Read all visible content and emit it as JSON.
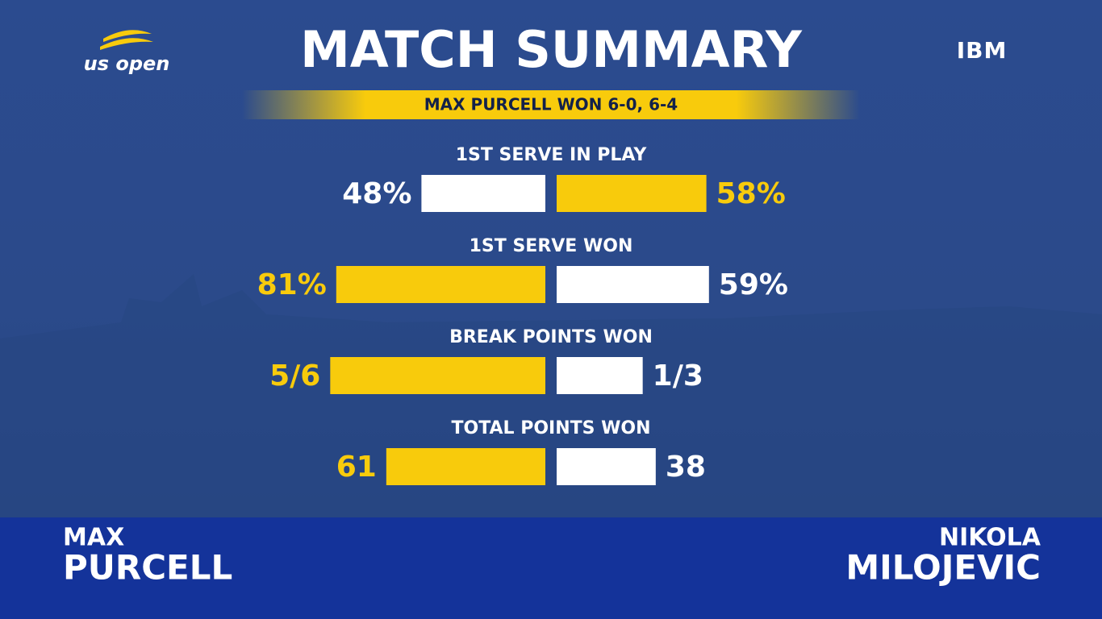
{
  "header": {
    "title": "MATCH SUMMARY",
    "result": "MAX PURCELL WON 6-0, 6-4",
    "logo": "us open",
    "sponsor": "IBM"
  },
  "stats": [
    {
      "label": "1ST SERVE IN PLAY",
      "kind": "percent",
      "values": [
        48,
        58
      ],
      "value_labels": [
        "48%",
        "58%"
      ],
      "colors": [
        "#ffffff",
        "#f8cb0c"
      ]
    },
    {
      "label": "1ST SERVE WON",
      "kind": "percent",
      "values": [
        81,
        59
      ],
      "value_labels": [
        "81%",
        "59%"
      ],
      "colors": [
        "#f8cb0c",
        "#ffffff"
      ]
    },
    {
      "label": "BREAK POINTS WON",
      "kind": "fraction",
      "values": [
        5,
        1
      ],
      "totals": [
        6,
        3
      ],
      "value_labels": [
        "5/6",
        "1/3"
      ],
      "colors": [
        "#f8cb0c",
        "#ffffff"
      ]
    },
    {
      "label": "TOTAL POINTS WON",
      "kind": "share",
      "values": [
        61,
        38
      ],
      "colors": [
        "#f8cb0c",
        "#ffffff"
      ]
    }
  ],
  "players": [
    {
      "first": "MAX",
      "last": "PURCELL"
    },
    {
      "first": "NIKOLA",
      "last": "MILOJEVIC"
    }
  ]
}
